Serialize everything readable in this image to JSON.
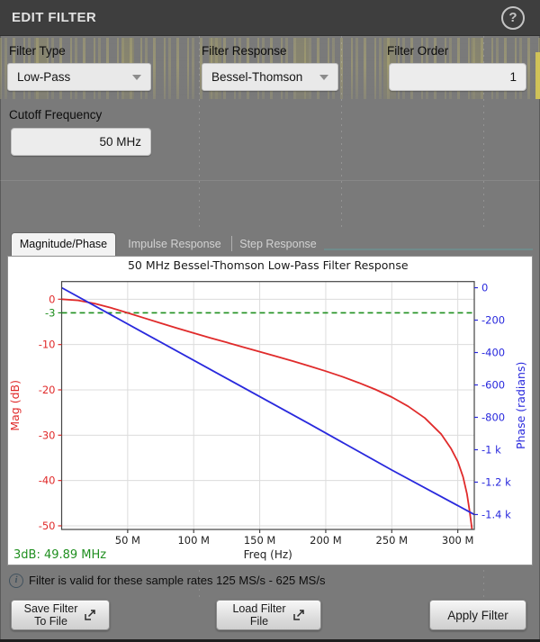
{
  "titlebar": {
    "title": "EDIT FILTER",
    "help_label": "?"
  },
  "fields": {
    "filter_type": {
      "label": "Filter Type",
      "value": "Low-Pass"
    },
    "filter_response": {
      "label": "Filter Response",
      "value": "Bessel-Thomson"
    },
    "filter_order": {
      "label": "Filter Order",
      "value": "1"
    },
    "cutoff_frequency": {
      "label": "Cutoff Frequency",
      "value": "50 MHz"
    }
  },
  "tabs": [
    {
      "label": "Magnitude/Phase",
      "active": true
    },
    {
      "label": "Impulse Response",
      "active": false
    },
    {
      "label": "Step Response",
      "active": false
    }
  ],
  "info": {
    "text": "Filter is valid for these sample rates 125 MS/s - 625 MS/s"
  },
  "buttons": {
    "save": {
      "line1": "Save Filter",
      "line2": "To File"
    },
    "load": {
      "line1": "Load Filter",
      "line2": "File"
    },
    "apply": {
      "label": "Apply Filter"
    }
  },
  "colors": {
    "mag": "#e02b2b",
    "phase": "#2929dd",
    "threshold": "#1f8f1f",
    "grid": "#dcdcdc",
    "spine": "#444444",
    "title_text": "#1a1a1a"
  },
  "chart_data": {
    "type": "line",
    "title": "50 MHz Bessel-Thomson Low-Pass Filter Response",
    "x_axis": {
      "label": "Freq (Hz)",
      "unit": "MHz",
      "lim": [
        0,
        312.5
      ],
      "ticks": [
        {
          "v": 50,
          "label": "50 M"
        },
        {
          "v": 100,
          "label": "100 M"
        },
        {
          "v": 150,
          "label": "150 M"
        },
        {
          "v": 200,
          "label": "200 M"
        },
        {
          "v": 250,
          "label": "250 M"
        },
        {
          "v": 300,
          "label": "300 M"
        }
      ]
    },
    "mag_axis": {
      "label": "Mag (dB)",
      "range": [
        3.9,
        -50.8
      ],
      "ticks": [
        {
          "v": 0,
          "label": "0"
        },
        {
          "v": -10,
          "label": "-10"
        },
        {
          "v": -20,
          "label": "-20"
        },
        {
          "v": -30,
          "label": "-30"
        },
        {
          "v": -40,
          "label": "-40"
        },
        {
          "v": -50,
          "label": "-50"
        }
      ]
    },
    "phase_axis": {
      "label": "Phase (radians)",
      "range": [
        38,
        -1492
      ],
      "ticks": [
        {
          "v": 0,
          "label": "0"
        },
        {
          "v": -200,
          "label": "-200"
        },
        {
          "v": -400,
          "label": "-400"
        },
        {
          "v": -600,
          "label": "-600"
        },
        {
          "v": -800,
          "label": "-800"
        },
        {
          "v": -1000,
          "label": "-1 k"
        },
        {
          "v": -1200,
          "label": "-1.2 k"
        },
        {
          "v": -1400,
          "label": "-1.4 k"
        }
      ]
    },
    "threshold_line": {
      "v": -3,
      "label": "-3",
      "style": "dashed"
    },
    "annotation": {
      "text": "3dB: 49.89 MHz"
    },
    "legend": "none",
    "grid": true,
    "series": [
      {
        "name": "Magnitude",
        "axis": "mag",
        "points": [
          [
            0,
            0
          ],
          [
            12.5,
            -0.25
          ],
          [
            25,
            -0.94
          ],
          [
            37.5,
            -1.91
          ],
          [
            50,
            -3.01
          ],
          [
            62.5,
            -4.15
          ],
          [
            75,
            -5.28
          ],
          [
            87.5,
            -6.39
          ],
          [
            100,
            -7.47
          ],
          [
            112.5,
            -8.51
          ],
          [
            125,
            -9.54
          ],
          [
            137.5,
            -10.56
          ],
          [
            150,
            -11.57
          ],
          [
            162.5,
            -12.6
          ],
          [
            175,
            -13.65
          ],
          [
            187.5,
            -14.73
          ],
          [
            200,
            -15.87
          ],
          [
            212.5,
            -17.09
          ],
          [
            225,
            -18.43
          ],
          [
            237.5,
            -19.9
          ],
          [
            250,
            -21.6
          ],
          [
            262.5,
            -23.64
          ],
          [
            275,
            -26.21
          ],
          [
            287.5,
            -29.78
          ],
          [
            295,
            -33.0
          ],
          [
            300,
            -35.83
          ],
          [
            304,
            -39.2
          ],
          [
            307,
            -43.0
          ],
          [
            309,
            -46.9
          ],
          [
            310.8,
            -51.0
          ]
        ]
      },
      {
        "name": "Phase",
        "axis": "phase",
        "points": [
          [
            0,
            0
          ],
          [
            62.5,
            -280
          ],
          [
            125,
            -560
          ],
          [
            187.5,
            -840
          ],
          [
            250,
            -1125
          ],
          [
            312.5,
            -1400
          ]
        ]
      }
    ]
  }
}
